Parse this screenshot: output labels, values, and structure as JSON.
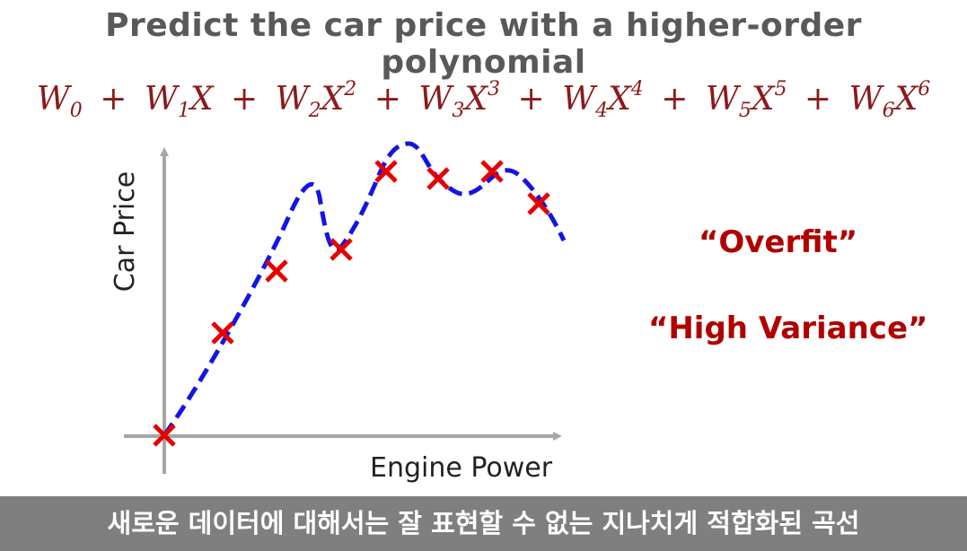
{
  "title": "Predict the car price with a higher-order polynomial",
  "formula": {
    "terms": [
      {
        "coef": "W",
        "sub": "0",
        "var": "",
        "pow": ""
      },
      {
        "coef": "W",
        "sub": "1",
        "var": "X",
        "pow": ""
      },
      {
        "coef": "W",
        "sub": "2",
        "var": "X",
        "pow": "2"
      },
      {
        "coef": "W",
        "sub": "3",
        "var": "X",
        "pow": "3"
      },
      {
        "coef": "W",
        "sub": "4",
        "var": "X",
        "pow": "4"
      },
      {
        "coef": "W",
        "sub": "5",
        "var": "X",
        "pow": "5"
      },
      {
        "coef": "W",
        "sub": "6",
        "var": "X",
        "pow": "6"
      }
    ],
    "operator": "+"
  },
  "axes": {
    "x_label": "Engine Power",
    "y_label": "Car Price"
  },
  "notes": {
    "overfit": "“Overfit”",
    "high_variance": "“High Variance”"
  },
  "caption": "새로운 데이터에 대해서는 잘 표현할 수 없는 지나치게 적합화된 곡선",
  "colors": {
    "title": "#595959",
    "formula": "#8b1a1a",
    "notes": "#b00000",
    "curve": "#1414e6",
    "points": "#e60000",
    "axes": "#a6a6a6",
    "caption_bg": "#7f7f7f"
  }
}
